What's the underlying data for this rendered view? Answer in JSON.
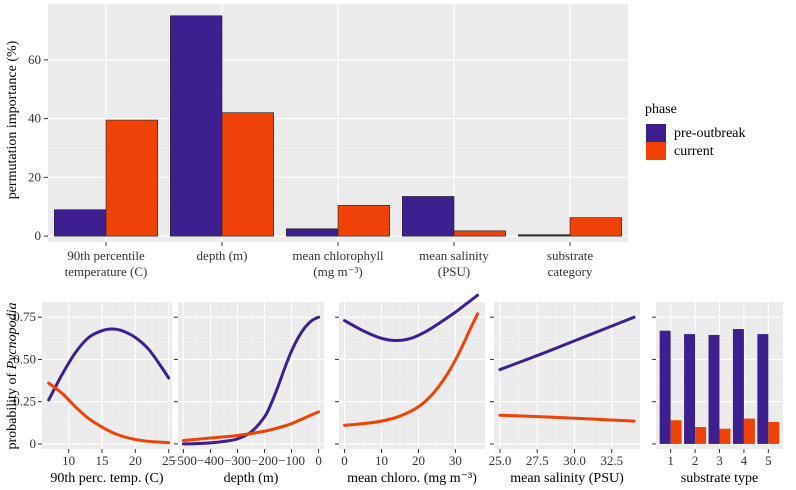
{
  "colors": {
    "pre": "#3e1f8f",
    "cur": "#ee4207",
    "panel": "#ebebeb"
  },
  "legend": {
    "title": "phase",
    "items": [
      {
        "label": "pre-outbreak",
        "color": "#3e1f8f"
      },
      {
        "label": "current",
        "color": "#ee4207"
      }
    ]
  },
  "top_ylabel": "permutation importance (%)",
  "bottom_ylabel_prefix": "probability of ",
  "bottom_ylabel_italic": "Pycnopodia",
  "chart_data": [
    {
      "type": "bar",
      "id": "importance",
      "categories": [
        [
          "90th percentile",
          "temperature (C)"
        ],
        [
          "depth (m)"
        ],
        [
          "mean chlorophyll",
          "(mg m⁻³)"
        ],
        [
          "mean salinity",
          "(PSU)"
        ],
        [
          "substrate",
          "category"
        ]
      ],
      "series": [
        {
          "name": "pre-outbreak",
          "values": [
            9,
            75,
            2.5,
            13.5,
            0.5
          ]
        },
        {
          "name": "current",
          "values": [
            39.5,
            42,
            10.5,
            1.8,
            6.3
          ]
        }
      ],
      "ylabel": "permutation importance (%)",
      "ylim": [
        -2,
        79
      ],
      "yticks": [
        0,
        20,
        40,
        60
      ],
      "grid": true
    },
    {
      "type": "line",
      "id": "temp",
      "xlabel": "90th perc. temp. (C)",
      "xlim": [
        6,
        25.5
      ],
      "ylim": [
        -0.03,
        0.84
      ],
      "xticks": [
        {
          "v": 10,
          "t": "10"
        },
        {
          "v": 15,
          "t": "15"
        },
        {
          "v": 20,
          "t": "20"
        },
        {
          "v": 25,
          "t": "25"
        }
      ],
      "yticks": [
        {
          "v": 0,
          "t": "0"
        },
        {
          "v": 0.25,
          "t": "0.25"
        },
        {
          "v": 0.5,
          "t": "0.50"
        },
        {
          "v": 0.75,
          "t": "0.75"
        }
      ],
      "series": [
        {
          "name": "pre-outbreak",
          "x": [
            7,
            9,
            11,
            13,
            15,
            16.5,
            18,
            20,
            22,
            24,
            25
          ],
          "y": [
            0.26,
            0.41,
            0.54,
            0.63,
            0.67,
            0.68,
            0.67,
            0.63,
            0.56,
            0.45,
            0.39
          ]
        },
        {
          "name": "current",
          "x": [
            7,
            9,
            11,
            13,
            15,
            17,
            19,
            21,
            23,
            25
          ],
          "y": [
            0.36,
            0.3,
            0.22,
            0.15,
            0.1,
            0.06,
            0.035,
            0.02,
            0.012,
            0.008
          ]
        }
      ]
    },
    {
      "type": "line",
      "id": "depth",
      "xlabel": "depth (m)",
      "xlim": [
        -520,
        20
      ],
      "ylim": [
        -0.03,
        0.84
      ],
      "xticks": [
        {
          "v": -500,
          "t": "−500"
        },
        {
          "v": -400,
          "t": "−400"
        },
        {
          "v": -300,
          "t": "−300"
        },
        {
          "v": -200,
          "t": "−200"
        },
        {
          "v": -100,
          "t": "−100"
        },
        {
          "v": 0,
          "t": "0"
        }
      ],
      "yticks": [
        {
          "v": 0,
          "t": ""
        },
        {
          "v": 0.25,
          "t": ""
        },
        {
          "v": 0.5,
          "t": ""
        },
        {
          "v": 0.75,
          "t": ""
        }
      ],
      "series": [
        {
          "name": "pre-outbreak",
          "x": [
            -500,
            -450,
            -400,
            -350,
            -300,
            -250,
            -200,
            -175,
            -150,
            -125,
            -100,
            -75,
            -50,
            -25,
            0
          ],
          "y": [
            0.0,
            0.002,
            0.006,
            0.015,
            0.03,
            0.07,
            0.16,
            0.24,
            0.34,
            0.45,
            0.55,
            0.63,
            0.69,
            0.73,
            0.75
          ]
        },
        {
          "name": "current",
          "x": [
            -500,
            -400,
            -300,
            -200,
            -150,
            -100,
            -50,
            0
          ],
          "y": [
            0.02,
            0.035,
            0.05,
            0.075,
            0.095,
            0.12,
            0.155,
            0.19
          ]
        }
      ]
    },
    {
      "type": "line",
      "id": "chloro",
      "xlabel": "mean chloro. (mg m⁻³)",
      "xlim": [
        -1.5,
        38
      ],
      "ylim": [
        -0.03,
        0.84
      ],
      "xticks": [
        {
          "v": 0,
          "t": "0"
        },
        {
          "v": 10,
          "t": "10"
        },
        {
          "v": 20,
          "t": "20"
        },
        {
          "v": 30,
          "t": "30"
        }
      ],
      "yticks": [
        {
          "v": 0,
          "t": ""
        },
        {
          "v": 0.25,
          "t": ""
        },
        {
          "v": 0.5,
          "t": ""
        },
        {
          "v": 0.75,
          "t": ""
        }
      ],
      "series": [
        {
          "name": "pre-outbreak",
          "x": [
            0,
            5,
            10,
            14,
            18,
            22,
            26,
            30,
            33,
            36
          ],
          "y": [
            0.73,
            0.67,
            0.625,
            0.612,
            0.625,
            0.665,
            0.72,
            0.78,
            0.83,
            0.88
          ]
        },
        {
          "name": "current",
          "x": [
            0,
            5,
            10,
            15,
            20,
            24,
            28,
            31,
            34,
            36
          ],
          "y": [
            0.11,
            0.12,
            0.135,
            0.165,
            0.22,
            0.3,
            0.42,
            0.54,
            0.68,
            0.77
          ]
        }
      ]
    },
    {
      "type": "line",
      "id": "salinity",
      "xlabel": "mean salinity (PSU)",
      "xlim": [
        24.6,
        34.4
      ],
      "ylim": [
        -0.03,
        0.84
      ],
      "xticks": [
        {
          "v": 25,
          "t": "25.0"
        },
        {
          "v": 27.5,
          "t": "27.5"
        },
        {
          "v": 30,
          "t": "30.0"
        },
        {
          "v": 32.5,
          "t": "32.5"
        }
      ],
      "yticks": [
        {
          "v": 0,
          "t": ""
        },
        {
          "v": 0.25,
          "t": ""
        },
        {
          "v": 0.5,
          "t": ""
        },
        {
          "v": 0.75,
          "t": ""
        }
      ],
      "series": [
        {
          "name": "pre-outbreak",
          "x": [
            25,
            28,
            31,
            34
          ],
          "y": [
            0.44,
            0.54,
            0.645,
            0.75
          ]
        },
        {
          "name": "current",
          "x": [
            25,
            28,
            31,
            34
          ],
          "y": [
            0.17,
            0.16,
            0.148,
            0.135
          ]
        }
      ]
    },
    {
      "type": "bar",
      "id": "substrate",
      "xlabel": "substrate type",
      "categories": [
        "1",
        "2",
        "3",
        "4",
        "5"
      ],
      "ylim": [
        -0.03,
        0.84
      ],
      "yticks": [
        {
          "v": 0,
          "t": ""
        },
        {
          "v": 0.25,
          "t": ""
        },
        {
          "v": 0.5,
          "t": ""
        },
        {
          "v": 0.75,
          "t": ""
        }
      ],
      "series": [
        {
          "name": "pre-outbreak",
          "values": [
            0.67,
            0.65,
            0.645,
            0.68,
            0.65
          ]
        },
        {
          "name": "current",
          "values": [
            0.14,
            0.1,
            0.09,
            0.15,
            0.13
          ]
        }
      ]
    }
  ]
}
